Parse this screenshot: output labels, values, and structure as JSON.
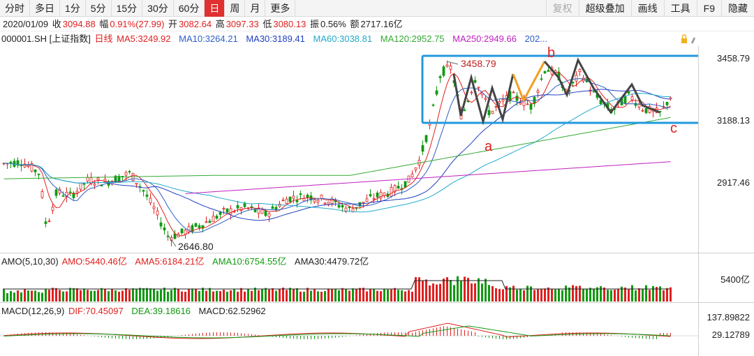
{
  "toolbar": {
    "periods": [
      "分时",
      "多日",
      "1分",
      "5分",
      "15分",
      "30分",
      "60分",
      "日",
      "周",
      "月",
      "更多"
    ],
    "active_period": "日",
    "tools": [
      "复权",
      "超级叠加",
      "画线",
      "工具",
      "F9",
      "隐藏"
    ],
    "disabled_tool": "复权"
  },
  "quote": {
    "date": "2020/01/09",
    "close_label": "收",
    "close": "3094.88",
    "change_label": "幅",
    "change": "0.91%(27.99)",
    "open_label": "开",
    "open": "3082.64",
    "high_label": "高",
    "high": "3097.33",
    "low_label": "低",
    "low": "3080.13",
    "amp_label": "振",
    "amp": "0.56%",
    "amount_label": "额",
    "amount": "2717.16亿"
  },
  "ma": {
    "symbol": "000001.SH [上证指数]",
    "line_type": "日线",
    "ma5": "MA5:3249.92",
    "ma10": "MA10:3264.21",
    "ma30": "MA30:3189.41",
    "ma60": "MA60:3038.81",
    "ma120": "MA120:2952.75",
    "ma250": "MA250:2949.66",
    "more": "202..."
  },
  "colors": {
    "up": "#e02020",
    "down": "#119911",
    "ma5": "#e02020",
    "ma10": "#2d5fc8",
    "ma30": "#2040c0",
    "ma60": "#22aacc",
    "ma120": "#33aa33",
    "ma250": "#c020c0",
    "box": "#2299dd",
    "zigzag": "#444444",
    "zigzag_alt": "#f0a020"
  },
  "price_axis": {
    "labels": [
      "3458.79",
      "3188.13",
      "2917.46"
    ]
  },
  "annotations": {
    "high_price": "3458.79",
    "low_price": "2646.80",
    "point_a": "a",
    "point_b": "b",
    "point_c": "c"
  },
  "amo": {
    "title": "AMO(5,10,30)",
    "amo": "AMO:5440.46亿",
    "ama5": "AMA5:6184.21亿",
    "ama10": "AMA10:6754.55亿",
    "ama30": "AMA30:4479.72亿",
    "axis": "5400亿"
  },
  "macd": {
    "title": "MACD(12,26,9)",
    "dif": "DIF:70.45097",
    "dea": "DEA:39.18616",
    "macd": "MACD:62.52962",
    "axis_top": "137.89822",
    "axis_mid": "29.12789"
  }
}
